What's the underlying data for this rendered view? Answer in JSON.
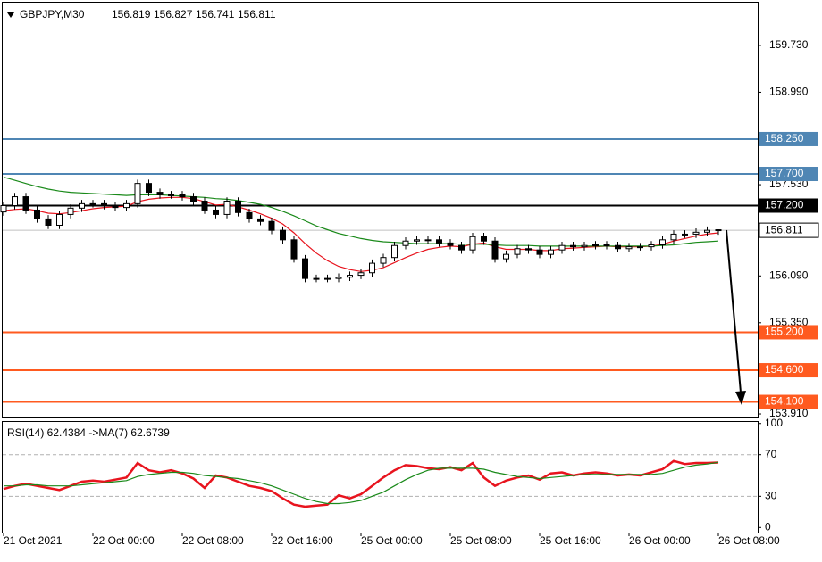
{
  "chart_data": [
    {
      "type": "candlestick",
      "title": "GBPJPY,M30",
      "categories": [
        "21 Oct 2021",
        null,
        null,
        null,
        null,
        null,
        null,
        null,
        "22 Oct 00:00",
        null,
        null,
        null,
        null,
        null,
        null,
        null,
        "22 Oct 08:00",
        null,
        null,
        null,
        null,
        null,
        null,
        null,
        "22 Oct 16:00",
        null,
        null,
        null,
        null,
        null,
        null,
        null,
        "25 Oct 00:00",
        null,
        null,
        null,
        null,
        null,
        null,
        null,
        "25 Oct 08:00",
        null,
        null,
        null,
        null,
        null,
        null,
        null,
        "25 Oct 16:00",
        null,
        null,
        null,
        null,
        null,
        null,
        null,
        "26 Oct 00:00",
        null,
        null,
        null,
        null,
        null,
        null,
        null,
        "26 Oct 08:00"
      ],
      "open": [
        157.1,
        157.2,
        157.34,
        157.13,
        156.99,
        156.89,
        157.06,
        157.16,
        157.23,
        157.23,
        157.2,
        157.17,
        157.23,
        157.55,
        157.41,
        157.37,
        157.37,
        157.34,
        157.27,
        157.13,
        157.06,
        157.27,
        157.09,
        156.99,
        156.95,
        156.81,
        156.66,
        156.36,
        156.05,
        156.05,
        156.05,
        156.07,
        156.1,
        156.14,
        156.29,
        156.38,
        156.57,
        156.64,
        156.66,
        156.66,
        156.61,
        156.57,
        156.5,
        156.71,
        156.64,
        156.36,
        156.43,
        156.52,
        156.5,
        156.43,
        156.5,
        156.57,
        156.55,
        156.57,
        156.58,
        156.57,
        156.52,
        156.55,
        156.55,
        156.58,
        156.66,
        156.75,
        156.75,
        156.78,
        156.819
      ],
      "high": [
        157.26,
        157.4,
        157.4,
        157.19,
        157.05,
        157.12,
        157.22,
        157.29,
        157.29,
        157.29,
        157.26,
        157.29,
        157.61,
        157.61,
        157.47,
        157.43,
        157.43,
        157.4,
        157.33,
        157.19,
        157.33,
        157.33,
        157.15,
        157.05,
        157.01,
        156.87,
        156.72,
        156.42,
        156.11,
        156.11,
        156.13,
        156.16,
        156.2,
        156.35,
        156.44,
        156.63,
        156.7,
        156.72,
        156.72,
        156.72,
        156.67,
        156.63,
        156.77,
        156.77,
        156.7,
        156.49,
        156.58,
        156.58,
        156.56,
        156.56,
        156.63,
        156.63,
        156.63,
        156.64,
        156.64,
        156.63,
        156.61,
        156.61,
        156.64,
        156.72,
        156.81,
        156.81,
        156.84,
        156.87,
        156.827
      ],
      "low": [
        157.04,
        157.14,
        157.07,
        156.93,
        156.83,
        156.83,
        157.0,
        157.1,
        157.17,
        157.14,
        157.11,
        157.11,
        157.17,
        157.35,
        157.31,
        157.31,
        157.28,
        157.21,
        157.07,
        157.0,
        157.0,
        157.03,
        156.93,
        156.89,
        156.75,
        156.6,
        156.3,
        155.99,
        155.99,
        155.99,
        155.99,
        156.01,
        156.04,
        156.08,
        156.23,
        156.32,
        156.51,
        156.58,
        156.6,
        156.55,
        156.51,
        156.44,
        156.44,
        156.58,
        156.3,
        156.3,
        156.37,
        156.44,
        156.37,
        156.37,
        156.44,
        156.49,
        156.49,
        156.51,
        156.51,
        156.46,
        156.46,
        156.49,
        156.49,
        156.52,
        156.6,
        156.69,
        156.69,
        156.72,
        156.741
      ],
      "close": [
        157.2,
        157.34,
        157.13,
        156.99,
        156.89,
        157.06,
        157.16,
        157.23,
        157.23,
        157.2,
        157.17,
        157.23,
        157.55,
        157.41,
        157.37,
        157.37,
        157.34,
        157.27,
        157.13,
        157.06,
        157.27,
        157.09,
        156.99,
        156.95,
        156.81,
        156.66,
        156.36,
        156.05,
        156.05,
        156.05,
        156.07,
        156.1,
        156.14,
        156.29,
        156.38,
        156.57,
        156.64,
        156.66,
        156.66,
        156.61,
        156.57,
        156.5,
        156.71,
        156.64,
        156.36,
        156.43,
        156.52,
        156.5,
        156.43,
        156.5,
        156.57,
        156.55,
        156.57,
        156.58,
        156.57,
        156.52,
        156.55,
        156.55,
        156.58,
        156.66,
        156.75,
        156.75,
        156.78,
        156.81,
        156.811
      ],
      "moving_averages": [
        {
          "color": "#e8141e",
          "values": [
            157.12,
            157.14,
            157.15,
            157.12,
            157.08,
            157.07,
            157.09,
            157.12,
            157.15,
            157.17,
            157.18,
            157.19,
            157.26,
            157.3,
            157.32,
            157.33,
            157.33,
            157.31,
            157.26,
            157.21,
            157.22,
            157.18,
            157.13,
            157.07,
            157.0,
            156.91,
            156.77,
            156.6,
            156.45,
            156.33,
            156.24,
            156.19,
            156.16,
            156.18,
            156.22,
            156.3,
            156.38,
            156.45,
            156.51,
            156.54,
            156.56,
            156.55,
            156.59,
            156.61,
            156.55,
            156.51,
            156.51,
            156.51,
            156.49,
            156.49,
            156.52,
            156.53,
            156.54,
            156.55,
            156.56,
            156.55,
            156.55,
            156.55,
            156.56,
            156.59,
            156.64,
            156.68,
            156.72,
            156.75,
            156.77
          ]
        },
        {
          "color": "#1a8a1a",
          "values": [
            157.65,
            157.6,
            157.55,
            157.5,
            157.46,
            157.43,
            157.41,
            157.4,
            157.39,
            157.38,
            157.37,
            157.36,
            157.37,
            157.37,
            157.37,
            157.36,
            157.35,
            157.34,
            157.33,
            157.31,
            157.3,
            157.28,
            157.25,
            157.22,
            157.17,
            157.11,
            157.04,
            156.96,
            156.88,
            156.82,
            156.76,
            156.72,
            156.68,
            156.65,
            156.63,
            156.62,
            156.61,
            156.6,
            156.6,
            156.6,
            156.6,
            156.59,
            156.59,
            156.59,
            156.58,
            156.57,
            156.57,
            156.57,
            156.56,
            156.56,
            156.56,
            156.56,
            156.56,
            156.56,
            156.56,
            156.56,
            156.56,
            156.56,
            156.56,
            156.57,
            156.58,
            156.6,
            156.62,
            156.63,
            156.64
          ]
        }
      ],
      "levels": [
        {
          "value": 158.25,
          "label": "158.250",
          "color": "#4f86b4"
        },
        {
          "value": 157.7,
          "label": "157.700",
          "color": "#4f86b4"
        },
        {
          "value": 157.2,
          "label": "157.200",
          "color": "#000000"
        },
        {
          "value": 155.2,
          "label": "155.200",
          "color": "#ff5a1f"
        },
        {
          "value": 154.6,
          "label": "154.600",
          "color": "#ff5a1f"
        },
        {
          "value": 154.1,
          "label": "154.100",
          "color": "#ff5a1f"
        }
      ],
      "ylim": [
        153.854,
        160.405
      ],
      "yticks": [
        {
          "value": 159.73,
          "label": "159.730"
        },
        {
          "value": 158.99,
          "label": "158.990"
        },
        {
          "value": 157.53,
          "label": "157.530"
        },
        {
          "value": 156.09,
          "label": "156.090"
        },
        {
          "value": 155.35,
          "label": "155.350"
        },
        {
          "value": 153.91,
          "label": "153.910"
        }
      ]
    },
    {
      "type": "line",
      "title": "RSI(14) 62.4384 ->MA(7) 62.6739",
      "series": [
        {
          "color": "#e8141e",
          "values": [
            37,
            40,
            42,
            40,
            38,
            36,
            40,
            44,
            45,
            44,
            46,
            48,
            62,
            55,
            53,
            55,
            52,
            47,
            38,
            50,
            48,
            44,
            40,
            38,
            35,
            28,
            22,
            20,
            21,
            22,
            31,
            28,
            32,
            40,
            48,
            55,
            60,
            59,
            57,
            56,
            58,
            55,
            62,
            48,
            40,
            45,
            48,
            50,
            46,
            52,
            53,
            50,
            52,
            53,
            52,
            50,
            51,
            50,
            53,
            56,
            64,
            61,
            62,
            62,
            62.4384
          ]
        },
        {
          "color": "#1a8a1a",
          "values": [
            40,
            40,
            41,
            41,
            40,
            40,
            40,
            41,
            42,
            43,
            44,
            45,
            49,
            51,
            52,
            53,
            53,
            52,
            50,
            49,
            48,
            47,
            45,
            43,
            40,
            36,
            32,
            28,
            25,
            23,
            23,
            24,
            26,
            30,
            34,
            40,
            46,
            51,
            55,
            57,
            57,
            57,
            57,
            56,
            53,
            51,
            49,
            48,
            47,
            48,
            49,
            50,
            51,
            51,
            51,
            51,
            51,
            51,
            51,
            52,
            55,
            58,
            60,
            61,
            62.6739
          ]
        }
      ],
      "levels": [
        70,
        30
      ],
      "ylim": [
        -4.9,
        101.5
      ],
      "yticks": [
        100,
        70,
        30,
        0
      ]
    }
  ]
}
